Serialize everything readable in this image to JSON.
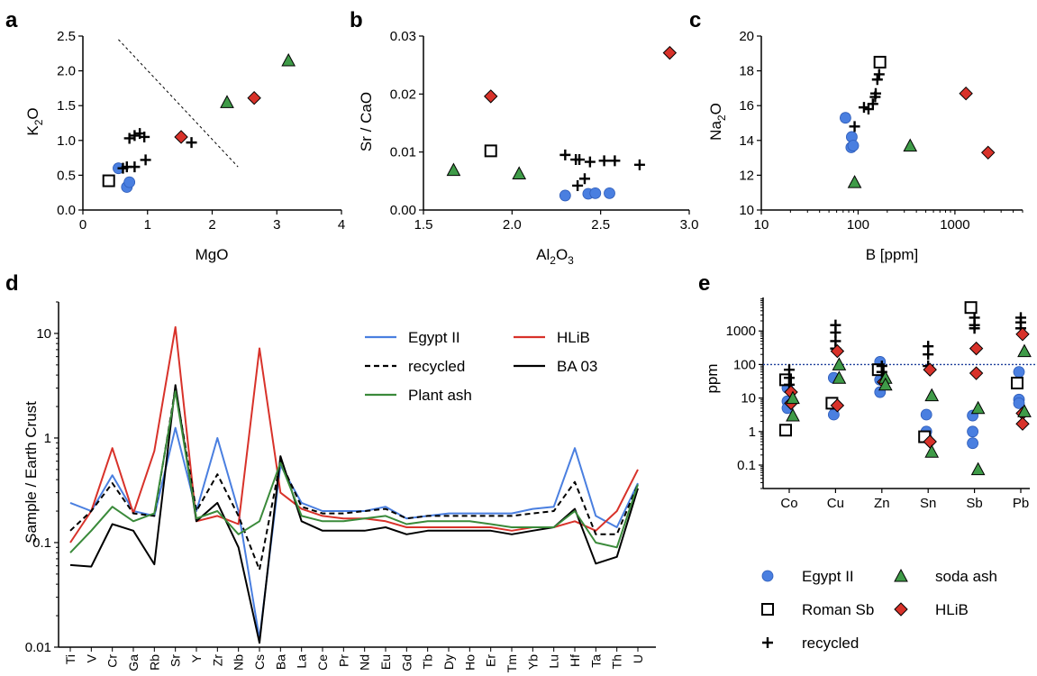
{
  "colors": {
    "egypt": "#4a7fe0",
    "hlib": "#d8322a",
    "plant": "#3a8a3a",
    "green_marker": "#3f9b48",
    "black": "#000000",
    "dotted_line": "#1f3f9a"
  },
  "chart_data": [
    {
      "panel": "a",
      "type": "scatter",
      "xlabel": "MgO",
      "ylabel_main": "K",
      "ylabel_sub": "2",
      "ylabel_tail": "O",
      "xlim": [
        0,
        4
      ],
      "ylim": [
        0,
        2.5
      ],
      "xticks": [
        "0",
        "1",
        "2",
        "3",
        "4"
      ],
      "yticks": [
        "0.0",
        "0.5",
        "1.0",
        "1.5",
        "2.0",
        "2.5"
      ],
      "guide_line": [
        [
          0.55,
          2.45
        ],
        [
          2.4,
          0.62
        ]
      ],
      "series": [
        {
          "key": "egypt",
          "points": [
            [
              0.55,
              0.6
            ],
            [
              0.68,
              0.33
            ],
            [
              0.72,
              0.4
            ]
          ]
        },
        {
          "key": "roman",
          "points": [
            [
              0.4,
              0.42
            ]
          ]
        },
        {
          "key": "recycled",
          "points": [
            [
              0.62,
              0.6
            ],
            [
              0.68,
              0.62
            ],
            [
              0.8,
              0.62
            ],
            [
              0.97,
              0.72
            ],
            [
              0.72,
              1.03
            ],
            [
              0.8,
              1.07
            ],
            [
              0.88,
              1.1
            ],
            [
              0.95,
              1.05
            ],
            [
              1.68,
              0.97
            ]
          ]
        },
        {
          "key": "hlib",
          "points": [
            [
              1.52,
              1.05
            ],
            [
              2.65,
              1.61
            ]
          ]
        },
        {
          "key": "soda",
          "points": [
            [
              2.23,
              1.55
            ],
            [
              3.18,
              2.15
            ]
          ]
        }
      ]
    },
    {
      "panel": "b",
      "type": "scatter",
      "xlabel_main": "Al",
      "xlabel_sub": "2",
      "xlabel_tail": "O",
      "xlabel_sub2": "3",
      "ylabel": "Sr / CaO",
      "xlim": [
        1.5,
        3.0
      ],
      "ylim": [
        0,
        0.03
      ],
      "xticks": [
        "1.5",
        "2.0",
        "2.5",
        "3.0"
      ],
      "yticks": [
        "0.00",
        "0.01",
        "0.02",
        "0.03"
      ],
      "series": [
        {
          "key": "egypt",
          "points": [
            [
              2.3,
              0.0025
            ],
            [
              2.43,
              0.0028
            ],
            [
              2.47,
              0.0029
            ],
            [
              2.55,
              0.0029
            ]
          ]
        },
        {
          "key": "roman",
          "points": [
            [
              1.88,
              0.0102
            ]
          ]
        },
        {
          "key": "recycled",
          "points": [
            [
              2.3,
              0.0095
            ],
            [
              2.36,
              0.0087
            ],
            [
              2.38,
              0.0087
            ],
            [
              2.44,
              0.0083
            ],
            [
              2.52,
              0.0085
            ],
            [
              2.58,
              0.0085
            ],
            [
              2.72,
              0.0078
            ],
            [
              2.37,
              0.0042
            ],
            [
              2.41,
              0.0054
            ]
          ]
        },
        {
          "key": "hlib",
          "points": [
            [
              1.88,
              0.0196
            ],
            [
              2.89,
              0.0271
            ]
          ]
        },
        {
          "key": "soda",
          "points": [
            [
              1.67,
              0.0069
            ],
            [
              2.04,
              0.0063
            ]
          ]
        }
      ]
    },
    {
      "panel": "c",
      "type": "scatter",
      "xscale": "log",
      "xlabel": "B [ppm]",
      "ylabel_main": "Na",
      "ylabel_sub": "2",
      "ylabel_tail": "O",
      "xlim": [
        10,
        5000
      ],
      "ylim": [
        10,
        20
      ],
      "xticks": [
        "10",
        "100",
        "1000"
      ],
      "yticks": [
        "10",
        "12",
        "14",
        "16",
        "18",
        "20"
      ],
      "series": [
        {
          "key": "egypt",
          "points": [
            [
              74,
              15.3
            ],
            [
              86,
              14.2
            ],
            [
              85,
              13.6
            ],
            [
              89,
              13.7
            ]
          ]
        },
        {
          "key": "roman",
          "points": [
            [
              168,
              18.5
            ]
          ]
        },
        {
          "key": "recycled",
          "points": [
            [
              92,
              14.8
            ],
            [
              115,
              15.9
            ],
            [
              128,
              15.8
            ],
            [
              142,
              16.1
            ],
            [
              150,
              16.5
            ],
            [
              152,
              16.7
            ],
            [
              158,
              17.5
            ],
            [
              165,
              17.8
            ]
          ]
        },
        {
          "key": "hlib",
          "points": [
            [
              1300,
              16.7
            ],
            [
              2200,
              13.3
            ]
          ]
        },
        {
          "key": "soda",
          "points": [
            [
              92,
              11.6
            ],
            [
              345,
              13.7
            ]
          ]
        }
      ]
    },
    {
      "panel": "d",
      "type": "line",
      "yscale": "log",
      "ylabel": "Sample / Earth Crust",
      "ylim": [
        0.01,
        20
      ],
      "yticks": [
        "0.01",
        "0.1",
        "1",
        "10"
      ],
      "categories": [
        "Ti",
        "V",
        "Cr",
        "Ga",
        "Rb",
        "Sr",
        "Y",
        "Zr",
        "Nb",
        "Cs",
        "Ba",
        "La",
        "Ce",
        "Pr",
        "Nd",
        "Eu",
        "Gd",
        "Tb",
        "Dy",
        "Ho",
        "Er",
        "Tm",
        "Yb",
        "Lu",
        "Hf",
        "Ta",
        "Th",
        "U"
      ],
      "series": [
        {
          "key": "egypt",
          "name": "Egypt II",
          "values": [
            0.24,
            0.2,
            0.44,
            0.2,
            0.18,
            1.25,
            0.2,
            1.0,
            0.2,
            0.012,
            0.55,
            0.24,
            0.2,
            0.2,
            0.2,
            0.22,
            0.17,
            0.18,
            0.19,
            0.19,
            0.19,
            0.19,
            0.21,
            0.22,
            0.8,
            0.18,
            0.14,
            0.37
          ]
        },
        {
          "key": "hlib",
          "name": "HLiB",
          "values": [
            0.1,
            0.2,
            0.8,
            0.19,
            0.75,
            11.5,
            0.16,
            0.18,
            0.15,
            7.2,
            0.3,
            0.21,
            0.18,
            0.17,
            0.17,
            0.16,
            0.14,
            0.14,
            0.14,
            0.14,
            0.14,
            0.13,
            0.14,
            0.14,
            0.16,
            0.13,
            0.2,
            0.5
          ]
        },
        {
          "key": "recycled",
          "name": "recycled",
          "values": [
            0.13,
            0.2,
            0.37,
            0.19,
            0.18,
            3.0,
            0.2,
            0.45,
            0.18,
            0.055,
            0.6,
            0.22,
            0.19,
            0.19,
            0.2,
            0.21,
            0.17,
            0.18,
            0.18,
            0.18,
            0.18,
            0.18,
            0.19,
            0.2,
            0.38,
            0.12,
            0.12,
            0.36
          ]
        },
        {
          "key": "black",
          "name": "BA 03",
          "values": [
            0.061,
            0.059,
            0.15,
            0.13,
            0.062,
            3.2,
            0.16,
            0.24,
            0.09,
            0.011,
            0.67,
            0.16,
            0.13,
            0.13,
            0.13,
            0.14,
            0.12,
            0.13,
            0.13,
            0.13,
            0.13,
            0.12,
            0.13,
            0.14,
            0.21,
            0.063,
            0.073,
            0.33
          ]
        },
        {
          "key": "plant",
          "name": "Plant ash",
          "values": [
            0.08,
            0.13,
            0.22,
            0.16,
            0.19,
            2.8,
            0.17,
            0.2,
            0.12,
            0.16,
            0.58,
            0.18,
            0.16,
            0.16,
            0.17,
            0.18,
            0.15,
            0.16,
            0.16,
            0.16,
            0.15,
            0.14,
            0.14,
            0.14,
            0.2,
            0.1,
            0.09,
            0.36
          ]
        }
      ]
    },
    {
      "panel": "e",
      "type": "scatter",
      "yscale": "log",
      "ylabel": "ppm",
      "ylim": [
        0.02,
        10000
      ],
      "yticks": [
        "0.1",
        "1",
        "10",
        "100",
        "1000"
      ],
      "reference_line": 100,
      "categories": [
        "Co",
        "Cu",
        "Zn",
        "Sn",
        "Sb",
        "Pb"
      ],
      "series": [
        {
          "key": "egypt",
          "points": [
            [
              0,
              20
            ],
            [
              0,
              8
            ],
            [
              0,
              5
            ],
            [
              1,
              40
            ],
            [
              1,
              6
            ],
            [
              1,
              3.2
            ],
            [
              2,
              120
            ],
            [
              2,
              35
            ],
            [
              2,
              15
            ],
            [
              3,
              3.2
            ],
            [
              3,
              1
            ],
            [
              3,
              0.65
            ],
            [
              4,
              3
            ],
            [
              4,
              1
            ],
            [
              4,
              0.45
            ],
            [
              5,
              60
            ],
            [
              5,
              9
            ],
            [
              5,
              7
            ]
          ]
        },
        {
          "key": "roman",
          "points": [
            [
              0,
              35
            ],
            [
              0,
              1.1
            ],
            [
              1,
              7
            ],
            [
              2,
              70
            ],
            [
              3,
              0.7
            ],
            [
              4,
              5000
            ],
            [
              5,
              28
            ]
          ]
        },
        {
          "key": "recycled",
          "points": [
            [
              0,
              70
            ],
            [
              0,
              40
            ],
            [
              0,
              25
            ],
            [
              1,
              1500
            ],
            [
              1,
              900
            ],
            [
              1,
              500
            ],
            [
              1,
              300
            ],
            [
              2,
              90
            ],
            [
              2,
              60
            ],
            [
              3,
              350
            ],
            [
              3,
              200
            ],
            [
              3,
              90
            ],
            [
              4,
              2500
            ],
            [
              4,
              1500
            ],
            [
              4,
              1200
            ],
            [
              5,
              2500
            ],
            [
              5,
              1800
            ],
            [
              5,
              1200
            ]
          ]
        },
        {
          "key": "hlib",
          "points": [
            [
              0,
              15
            ],
            [
              0,
              7
            ],
            [
              1,
              250
            ],
            [
              1,
              6
            ],
            [
              2,
              30
            ],
            [
              3,
              70
            ],
            [
              3,
              0.5
            ],
            [
              4,
              300
            ],
            [
              4,
              55
            ],
            [
              5,
              800
            ],
            [
              5,
              3.5
            ],
            [
              5,
              1.7
            ]
          ]
        },
        {
          "key": "soda",
          "points": [
            [
              0,
              10
            ],
            [
              0,
              3
            ],
            [
              1,
              100
            ],
            [
              1,
              40
            ],
            [
              2,
              40
            ],
            [
              2,
              25
            ],
            [
              3,
              12
            ],
            [
              3,
              0.25
            ],
            [
              4,
              5
            ],
            [
              4,
              0.075
            ],
            [
              5,
              250
            ],
            [
              5,
              4
            ]
          ]
        }
      ]
    }
  ],
  "panels": {
    "a": "a",
    "b": "b",
    "c": "c",
    "d": "d",
    "e": "e"
  },
  "legend_d": [
    {
      "key": "egypt",
      "label": "Egypt II"
    },
    {
      "key": "hlib",
      "label": "HLiB"
    },
    {
      "key": "recycled",
      "label": "recycled"
    },
    {
      "key": "black",
      "label": "BA 03"
    },
    {
      "key": "plant",
      "label": "Plant ash"
    }
  ],
  "legend_e": [
    {
      "key": "egypt",
      "label": "Egypt II"
    },
    {
      "key": "soda",
      "label": "soda ash"
    },
    {
      "key": "roman",
      "label": "Roman Sb"
    },
    {
      "key": "hlib",
      "label": "HLiB"
    },
    {
      "key": "recycled",
      "label": "recycled"
    }
  ]
}
